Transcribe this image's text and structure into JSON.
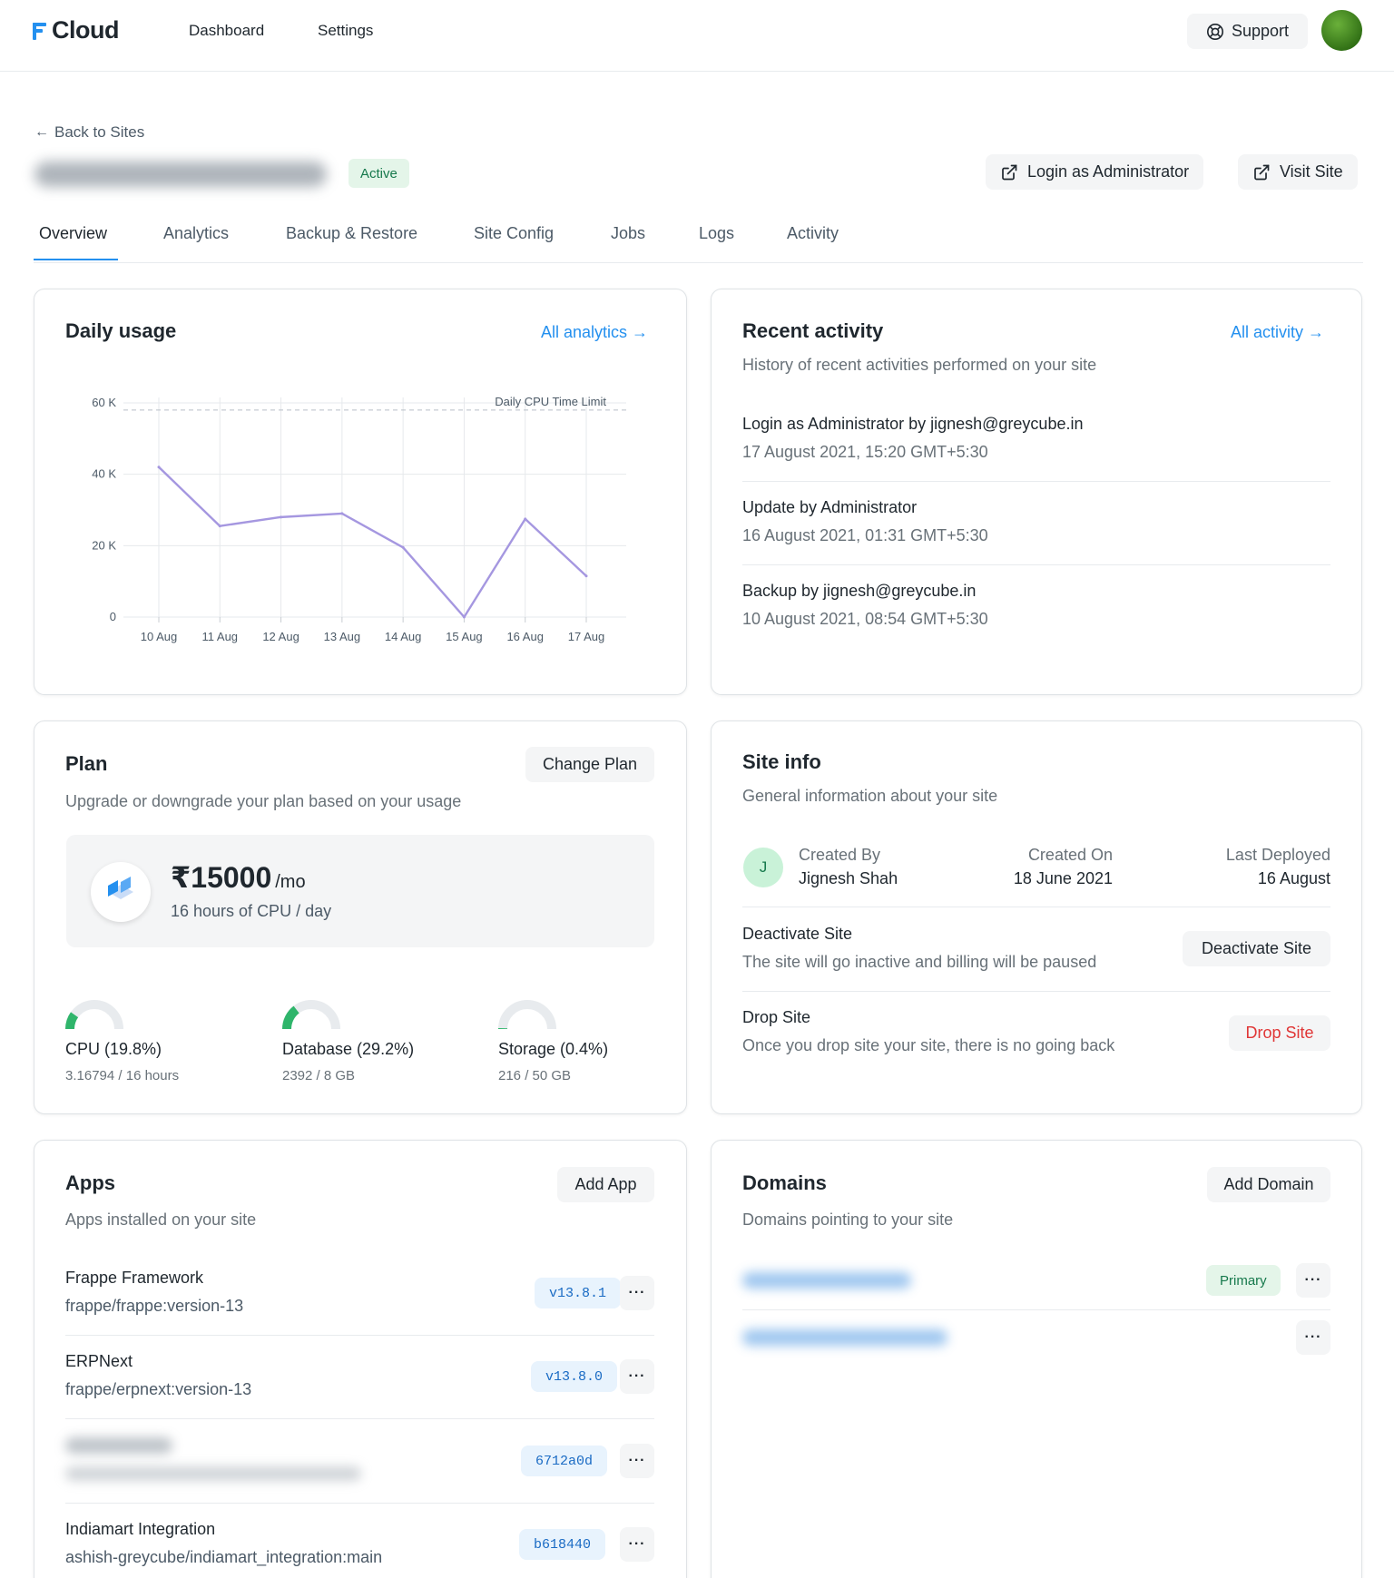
{
  "nav": {
    "brand": "Cloud",
    "links": [
      "Dashboard",
      "Settings"
    ],
    "support_label": "Support"
  },
  "header": {
    "back_label": "Back to Sites",
    "status": "Active",
    "login_admin_label": "Login as Administrator",
    "visit_site_label": "Visit Site"
  },
  "tabs": [
    "Overview",
    "Analytics",
    "Backup & Restore",
    "Site Config",
    "Jobs",
    "Logs",
    "Activity"
  ],
  "daily_usage": {
    "title": "Daily usage",
    "link": "All analytics →"
  },
  "chart_data": {
    "type": "line",
    "x": [
      "10 Aug",
      "11 Aug",
      "12 Aug",
      "13 Aug",
      "14 Aug",
      "15 Aug",
      "16 Aug",
      "17 Aug"
    ],
    "series": [
      {
        "values": [
          42000,
          25500,
          28000,
          29000,
          19500,
          0,
          27500,
          11500
        ],
        "color": "#a597e0"
      }
    ],
    "yticks": [
      "0",
      "20 K",
      "40 K",
      "60 K"
    ],
    "ytick_values": [
      0,
      20000,
      40000,
      60000
    ],
    "ylim": [
      0,
      60000
    ],
    "annotation": "Daily CPU Time Limit",
    "limit_value": 58000,
    "grid": true
  },
  "recent_activity": {
    "title": "Recent activity",
    "link": "All activity →",
    "subtitle": "History of recent activities performed on your site",
    "items": [
      {
        "title": "Login as Administrator by jignesh@greycube.in",
        "time": "17 August 2021, 15:20 GMT+5:30"
      },
      {
        "title": "Update by Administrator",
        "time": "16 August 2021, 01:31 GMT+5:30"
      },
      {
        "title": "Backup by jignesh@greycube.in",
        "time": "10 August 2021, 08:54 GMT+5:30"
      }
    ]
  },
  "plan": {
    "title": "Plan",
    "change_label": "Change Plan",
    "subtitle": "Upgrade or downgrade your plan based on your usage",
    "price": "₹15000",
    "per": "/mo",
    "detail": "16 hours of CPU / day",
    "gauges": [
      {
        "label": "CPU (19.8%)",
        "value": "3.16794 / 16 hours",
        "fraction": 0.198,
        "color": "#2fb56b"
      },
      {
        "label": "Database (29.2%)",
        "value": "2392 / 8 GB",
        "fraction": 0.292,
        "color": "#2fb56b"
      },
      {
        "label": "Storage (0.4%)",
        "value": "216 / 50 GB",
        "fraction": 0.004,
        "color": "#2fb56b"
      }
    ]
  },
  "site_info": {
    "title": "Site info",
    "subtitle": "General information about your site",
    "avatar_letter": "J",
    "created_by_label": "Created By",
    "created_by": "Jignesh Shah",
    "created_on_label": "Created On",
    "created_on": "18 June 2021",
    "last_deployed_label": "Last Deployed",
    "last_deployed": "16 August",
    "deactivate_title": "Deactivate Site",
    "deactivate_sub": "The site will go inactive and billing will be paused",
    "deactivate_btn": "Deactivate Site",
    "drop_title": "Drop Site",
    "drop_sub": "Once you drop site your site, there is no going back",
    "drop_btn": "Drop Site"
  },
  "apps": {
    "title": "Apps",
    "add_label": "Add App",
    "subtitle": "Apps installed on your site",
    "items": [
      {
        "name": "Frappe Framework",
        "repo": "frappe/frappe:version-13",
        "version": "v13.8.1"
      },
      {
        "name": "ERPNext",
        "repo": "frappe/erpnext:version-13",
        "version": "v13.8.0"
      },
      {
        "name": "",
        "repo": "",
        "version": "6712a0d"
      },
      {
        "name": "Indiamart Integration",
        "repo": "ashish-greycube/indiamart_integration:main",
        "version": "b618440"
      }
    ]
  },
  "domains": {
    "title": "Domains",
    "add_label": "Add Domain",
    "subtitle": "Domains pointing to your site",
    "primary_label": "Primary"
  },
  "colors": {
    "accent": "#2490ef",
    "success_bg": "#e4f5e9",
    "success_text": "#16794c",
    "danger": "#e03636",
    "chart_line": "#a597e0"
  },
  "icons": {
    "support": "lifebuoy-icon",
    "back": "arrow-left-icon",
    "external": "external-link-icon",
    "more": "more-horizontal-icon"
  }
}
